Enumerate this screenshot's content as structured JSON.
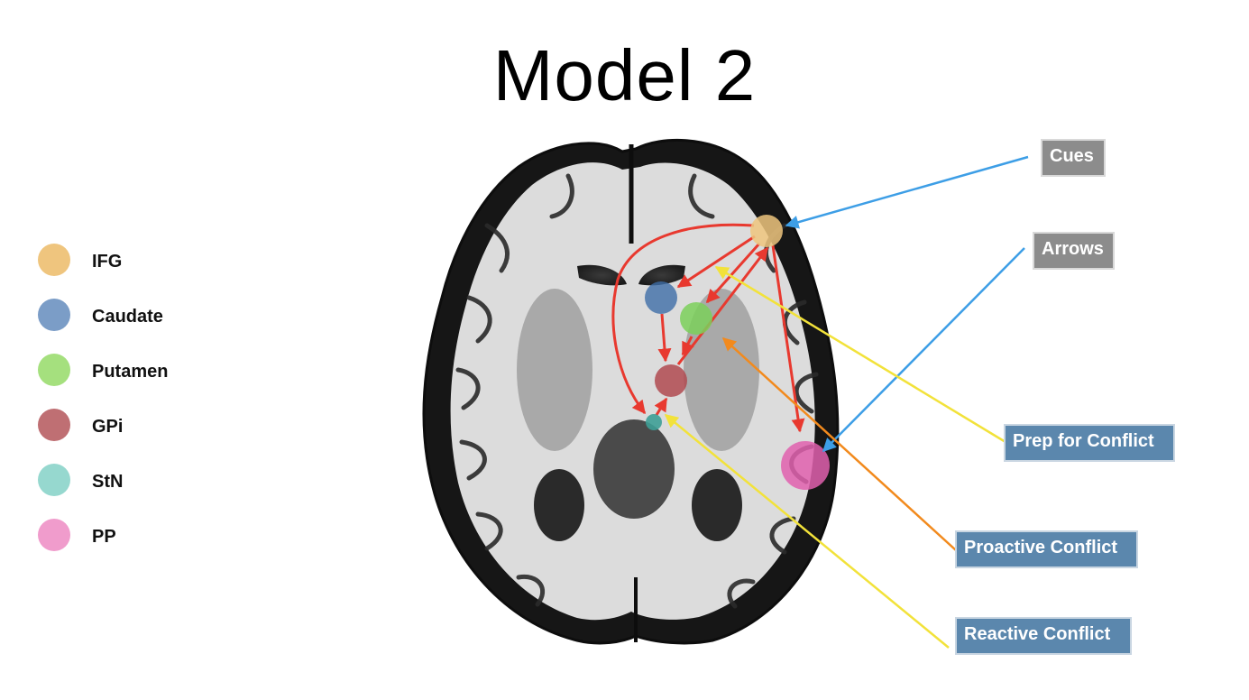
{
  "title": "Model 2",
  "legend": [
    {
      "label": "IFG",
      "color": "#efc57e"
    },
    {
      "label": "Caudate",
      "color": "#7b9dc7"
    },
    {
      "label": "Putamen",
      "color": "#a5e07e"
    },
    {
      "label": "GPi",
      "color": "#bf6f73"
    },
    {
      "label": "StN",
      "color": "#96d8cf"
    },
    {
      "label": "PP",
      "color": "#f09ccc"
    }
  ],
  "tags": {
    "cues": "Cues",
    "arrows": "Arrows",
    "prep": "Prep for Conflict",
    "proactive": "Proactive Conflict",
    "reactive": "Reactive Conflict"
  },
  "colors": {
    "connection": "#e8392f",
    "cues_line": "#3d9ee6",
    "prep_line": "#f2e23a",
    "proactive_line": "#f28a1d",
    "reactive_line": "#f2e23a",
    "grey_tag": "#8c8c8c",
    "blue_tag": "#5b87ad"
  }
}
